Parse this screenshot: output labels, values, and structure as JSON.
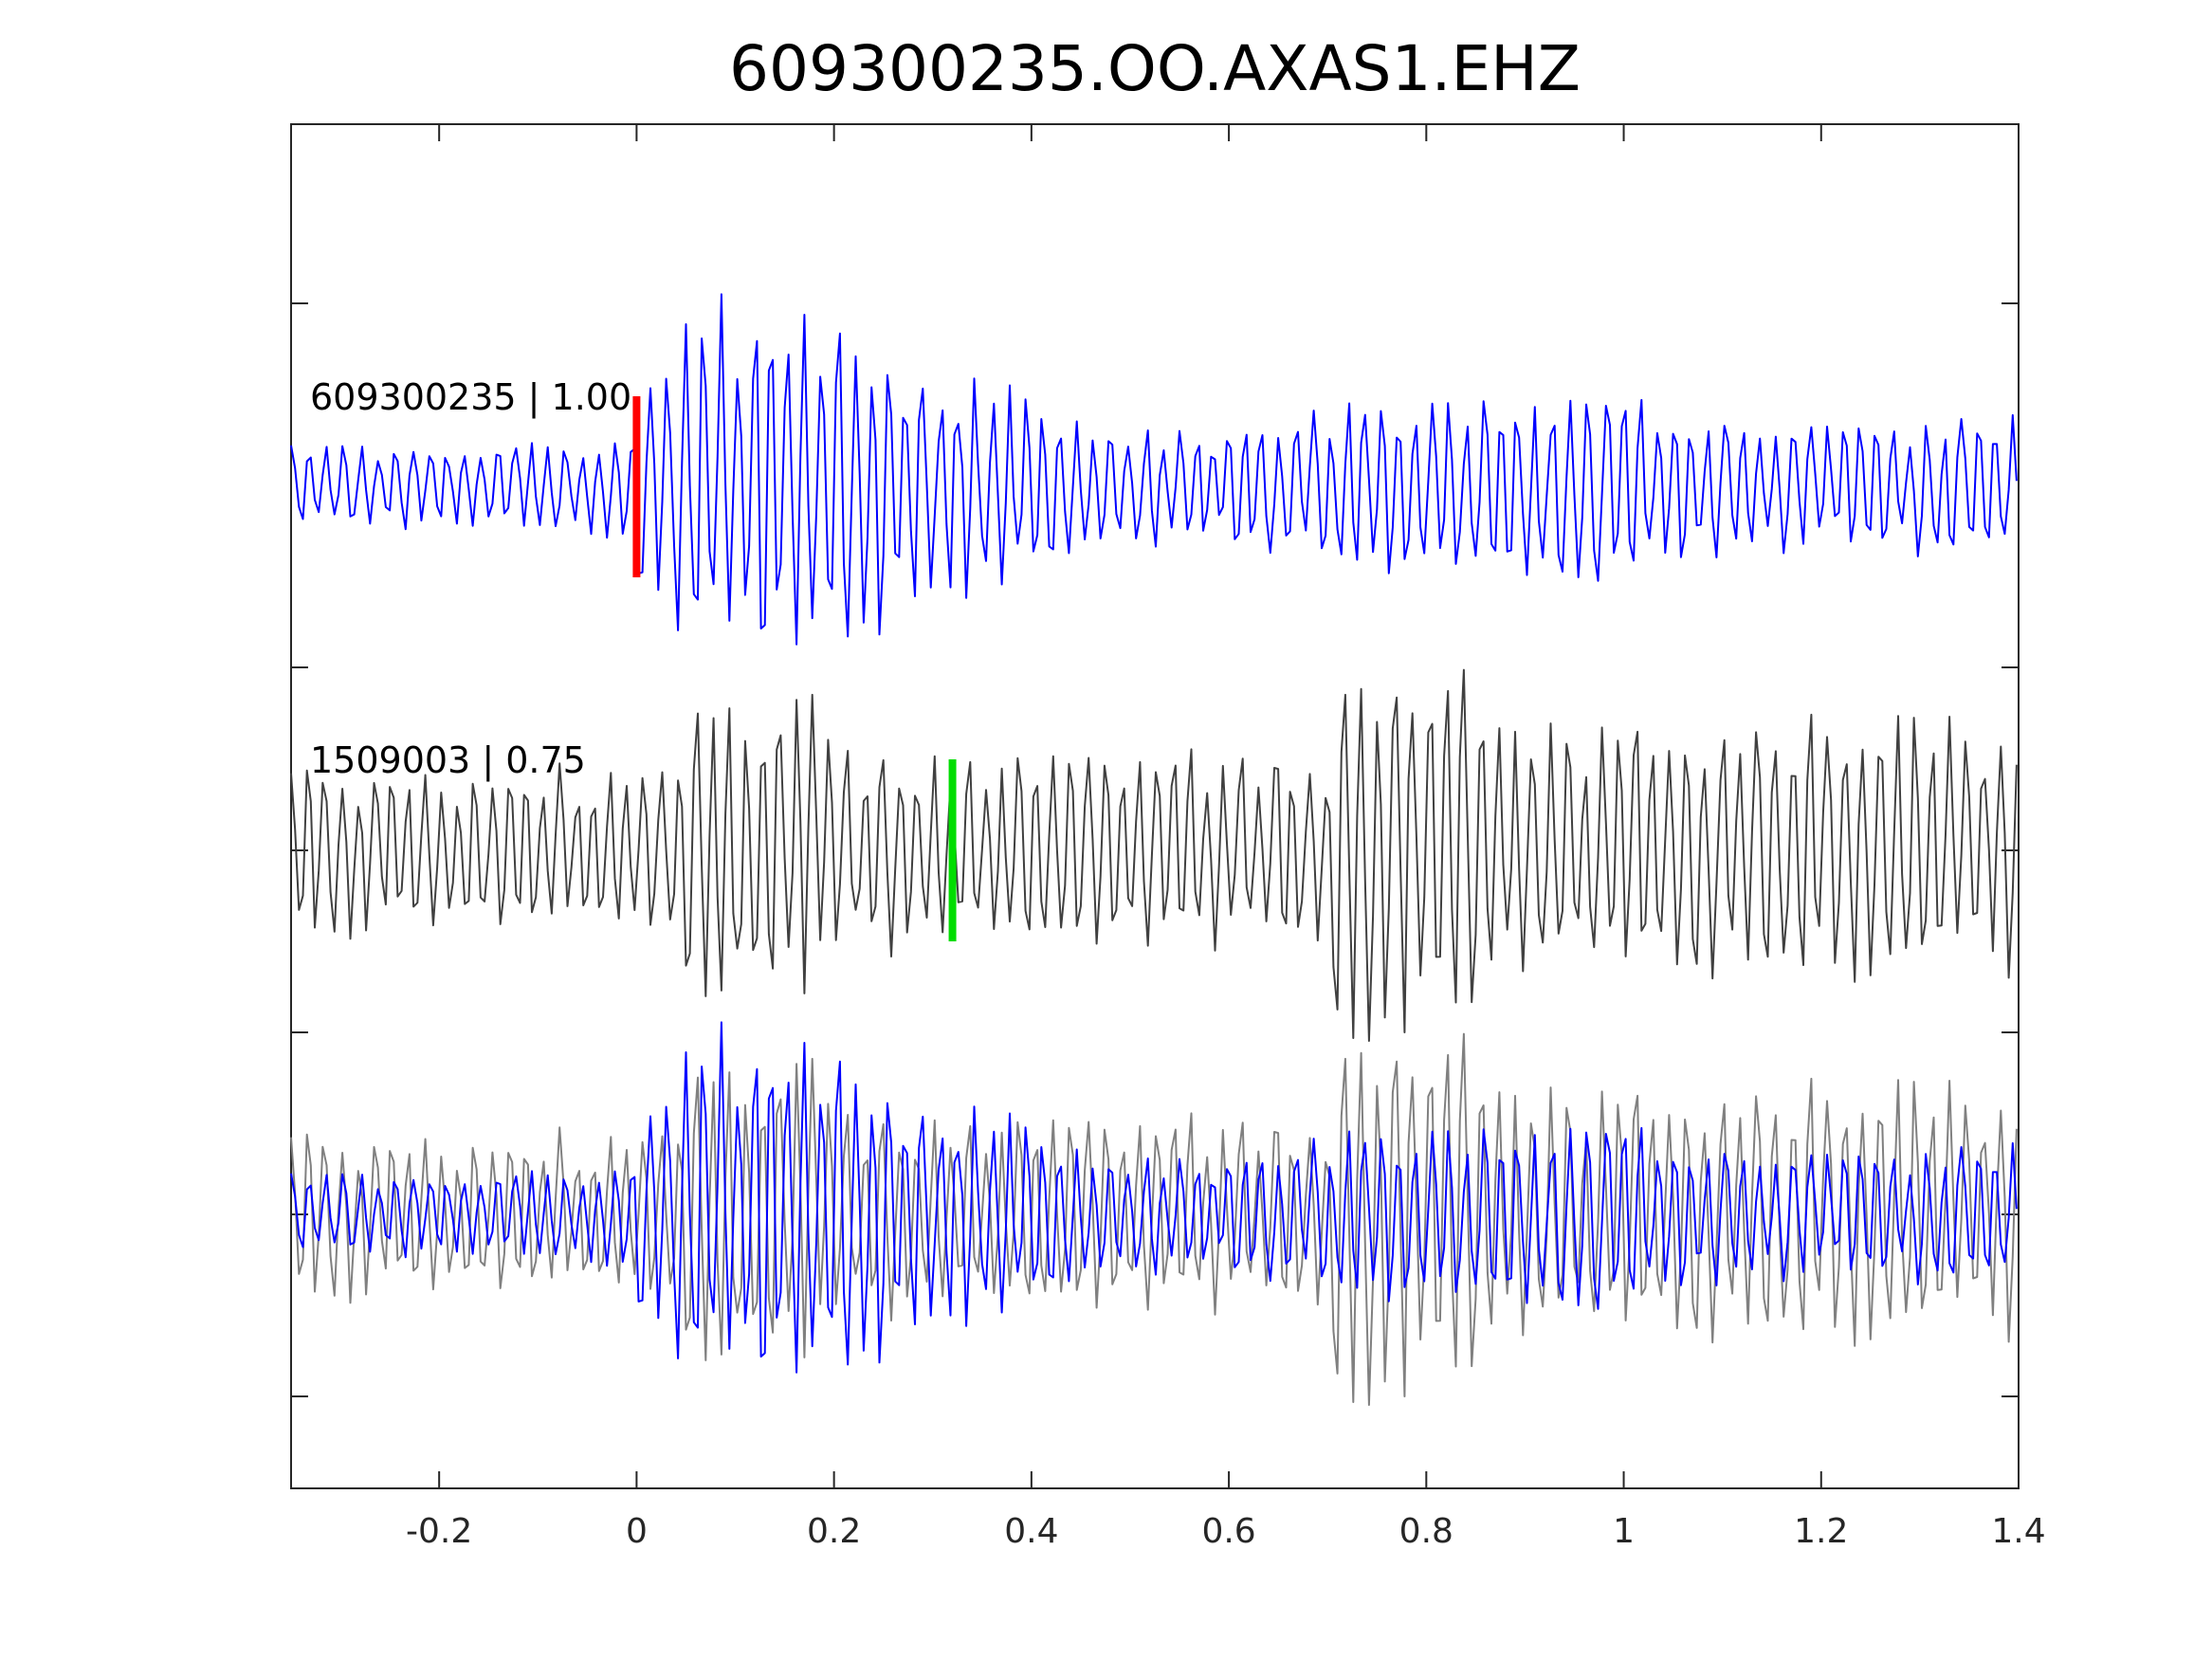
{
  "chart_data": {
    "type": "line",
    "title": "609300235.OO.AXAS1.EHZ",
    "xlabel": "",
    "ylabel": "",
    "xlim": [
      -0.35,
      1.4
    ],
    "x_ticks": [
      -0.2,
      0,
      0.2,
      0.4,
      0.6,
      0.8,
      1,
      1.2,
      1.4
    ],
    "x_tick_labels": [
      "-0.2",
      "0",
      "0.2",
      "0.4",
      "0.6",
      "0.8",
      "1",
      "1.2",
      "1.4"
    ],
    "y_tick_labels_shown": false,
    "grid": false,
    "colors": {
      "target_trace": "#0000ff",
      "template_trace": "#404040",
      "overlay_template_trace": "#808080",
      "p_pick": "#ff0000",
      "s_pick": "#00dd00"
    },
    "traces": [
      {
        "name": "609300235",
        "label": "609300235 | 1.00",
        "correlation": 1.0,
        "color": "#0000ff",
        "pick_time": 0.0,
        "pick_color": "#ff0000"
      },
      {
        "name": "1509003",
        "label": "1509003 | 0.75",
        "correlation": 0.75,
        "color": "#404040",
        "pick_time": 0.32,
        "pick_color": "#00dd00"
      },
      {
        "name": "overlay",
        "label": "",
        "color": "#0000ff",
        "overlay_color": "#808080"
      }
    ],
    "sample_interval": 0.004
  }
}
